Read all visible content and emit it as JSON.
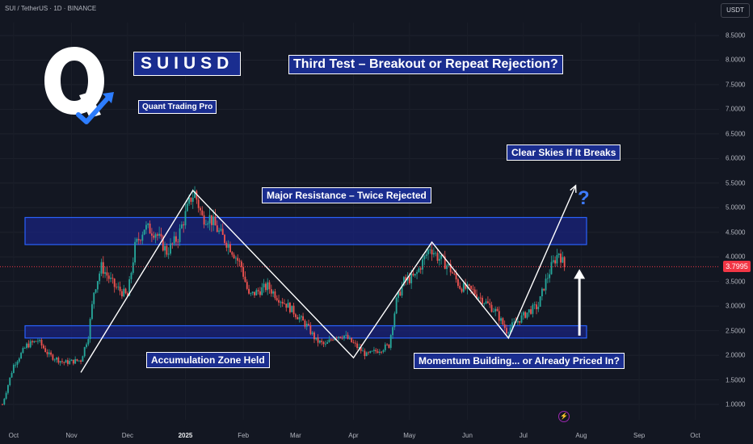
{
  "symbol_line": "SUI / TetherUS · 1D · BINANCE",
  "currency": "USDT",
  "last_price_tag": "3.7995",
  "brand": {
    "title": "SUIUSD",
    "subtitle": "Quant Trading Pro"
  },
  "annotations": {
    "third_test": "Third Test – Breakout or Repeat Rejection?",
    "major_resistance": "Major Resistance – Twice Rejected",
    "clear_skies": "Clear Skies If It Breaks",
    "accumulation": "Accumulation Zone Held",
    "momentum": "Momentum Building... or Already Priced In?",
    "question": "?"
  },
  "colors": {
    "background": "#131722",
    "up": "#26a69a",
    "down": "#ef5350",
    "zone_fill": "#1a237e",
    "zone_border": "#2962ff",
    "last_price": "#f23645",
    "annotation_bg": "#1a2d8f"
  },
  "chart_data": {
    "type": "candlestick",
    "x_axis": {
      "labels": [
        "Oct",
        "Nov",
        "Dec",
        "2025",
        "Feb",
        "Mar",
        "Apr",
        "May",
        "Jun",
        "Jul",
        "Aug",
        "Sep",
        "Oct"
      ],
      "bold": [
        "2025"
      ]
    },
    "y_axis": {
      "ticks": [
        "8.5000",
        "8.0000",
        "7.5000",
        "7.0000",
        "6.5000",
        "6.0000",
        "5.5000",
        "5.0000",
        "4.5000",
        "4.0000",
        "3.5000",
        "3.0000",
        "2.5000",
        "2.0000",
        "1.5000",
        "1.0000"
      ],
      "range": [
        0.8,
        8.7
      ],
      "side": "right"
    },
    "last_price": 3.7995,
    "zones": [
      {
        "name": "resistance",
        "from": 4.25,
        "to": 4.8
      },
      {
        "name": "support",
        "from": 2.35,
        "to": 2.6
      }
    ],
    "price_path": [
      [
        "2024-09-25",
        1.0
      ],
      [
        "2024-10-01",
        1.8
      ],
      [
        "2024-10-08",
        2.2
      ],
      [
        "2024-10-14",
        2.3
      ],
      [
        "2024-10-20",
        2.0
      ],
      [
        "2024-10-28",
        1.85
      ],
      [
        "2024-11-06",
        1.9
      ],
      [
        "2024-11-10",
        2.4
      ],
      [
        "2024-11-13",
        3.3
      ],
      [
        "2024-11-17",
        3.8
      ],
      [
        "2024-11-24",
        3.4
      ],
      [
        "2024-12-01",
        3.2
      ],
      [
        "2024-12-05",
        4.2
      ],
      [
        "2024-12-10",
        4.6
      ],
      [
        "2024-12-16",
        4.5
      ],
      [
        "2024-12-22",
        4.1
      ],
      [
        "2024-12-28",
        4.4
      ],
      [
        "2025-01-04",
        5.2
      ],
      [
        "2025-01-06",
        5.3
      ],
      [
        "2025-01-10",
        4.8
      ],
      [
        "2025-01-14",
        4.8
      ],
      [
        "2025-01-19",
        4.5
      ],
      [
        "2025-01-25",
        4.2
      ],
      [
        "2025-01-31",
        3.8
      ],
      [
        "2025-02-04",
        3.2
      ],
      [
        "2025-02-09",
        3.3
      ],
      [
        "2025-02-14",
        3.4
      ],
      [
        "2025-02-19",
        3.2
      ],
      [
        "2025-02-25",
        3.0
      ],
      [
        "2025-03-02",
        2.8
      ],
      [
        "2025-03-07",
        2.6
      ],
      [
        "2025-03-12",
        2.3
      ],
      [
        "2025-03-17",
        2.2
      ],
      [
        "2025-03-22",
        2.4
      ],
      [
        "2025-03-27",
        2.4
      ],
      [
        "2025-04-02",
        2.2
      ],
      [
        "2025-04-08",
        2.0
      ],
      [
        "2025-04-14",
        2.1
      ],
      [
        "2025-04-20",
        2.2
      ],
      [
        "2025-04-24",
        3.1
      ],
      [
        "2025-04-28",
        3.5
      ],
      [
        "2025-05-04",
        3.6
      ],
      [
        "2025-05-08",
        3.9
      ],
      [
        "2025-05-12",
        4.2
      ],
      [
        "2025-05-16",
        4.0
      ],
      [
        "2025-05-22",
        3.8
      ],
      [
        "2025-05-28",
        3.4
      ],
      [
        "2025-06-04",
        3.3
      ],
      [
        "2025-06-10",
        3.1
      ],
      [
        "2025-06-16",
        2.9
      ],
      [
        "2025-06-22",
        2.5
      ],
      [
        "2025-06-28",
        2.7
      ],
      [
        "2025-07-04",
        2.9
      ],
      [
        "2025-07-09",
        3.0
      ],
      [
        "2025-07-12",
        3.4
      ],
      [
        "2025-07-16",
        3.8
      ],
      [
        "2025-07-20",
        4.1
      ],
      [
        "2025-07-23",
        3.8
      ]
    ],
    "drawn_path": [
      [
        "2024-11-06",
        1.65
      ],
      [
        "2025-01-05",
        5.35
      ],
      [
        "2025-04-01",
        1.95
      ],
      [
        "2025-05-13",
        4.3
      ],
      [
        "2025-06-23",
        2.35
      ],
      [
        "2025-07-29",
        5.45
      ]
    ],
    "arrow": {
      "date": "2025-07-31",
      "from": 2.4,
      "to": 3.75
    }
  }
}
